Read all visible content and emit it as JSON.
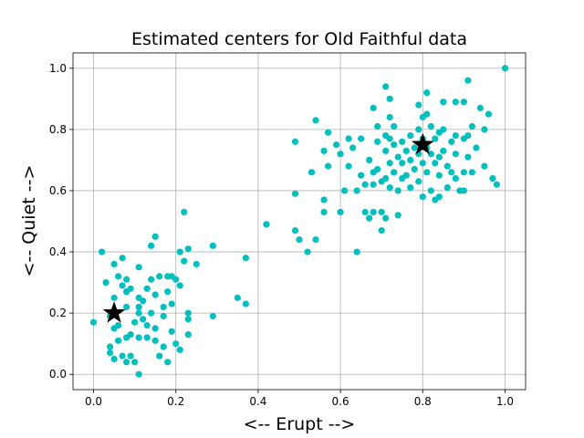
{
  "chart_data": {
    "type": "scatter",
    "title": "Estimated centers for Old Faithful data",
    "xlabel": "<-- Erupt -->",
    "ylabel": "<-- Quiet -->",
    "xlim": [
      -0.05,
      1.05
    ],
    "ylim": [
      -0.05,
      1.05
    ],
    "xticks": [
      "0.0",
      "0.2",
      "0.4",
      "0.6",
      "0.8",
      "1.0"
    ],
    "yticks": [
      "0.0",
      "0.2",
      "0.4",
      "0.6",
      "0.8",
      "1.0"
    ],
    "grid": true,
    "point_color": "#00BFBF",
    "center_color": "#000000",
    "centers": [
      {
        "x": 0.05,
        "y": 0.2
      },
      {
        "x": 0.8,
        "y": 0.75
      }
    ],
    "points": [
      [
        0.0,
        0.17
      ],
      [
        0.02,
        0.4
      ],
      [
        0.03,
        0.3
      ],
      [
        0.04,
        0.19
      ],
      [
        0.04,
        0.09
      ],
      [
        0.04,
        0.07
      ],
      [
        0.05,
        0.36
      ],
      [
        0.05,
        0.25
      ],
      [
        0.05,
        0.15
      ],
      [
        0.05,
        0.05
      ],
      [
        0.06,
        0.32
      ],
      [
        0.06,
        0.16
      ],
      [
        0.06,
        0.11
      ],
      [
        0.07,
        0.38
      ],
      [
        0.07,
        0.29
      ],
      [
        0.07,
        0.06
      ],
      [
        0.08,
        0.31
      ],
      [
        0.08,
        0.27
      ],
      [
        0.08,
        0.22
      ],
      [
        0.08,
        0.12
      ],
      [
        0.08,
        0.04
      ],
      [
        0.09,
        0.28
      ],
      [
        0.09,
        0.13
      ],
      [
        0.09,
        0.06
      ],
      [
        0.1,
        0.17
      ],
      [
        0.1,
        0.04
      ],
      [
        0.11,
        0.35
      ],
      [
        0.11,
        0.25
      ],
      [
        0.11,
        0.22
      ],
      [
        0.11,
        0.2
      ],
      [
        0.11,
        0.12
      ],
      [
        0.11,
        0.0
      ],
      [
        0.12,
        0.24
      ],
      [
        0.12,
        0.18
      ],
      [
        0.13,
        0.28
      ],
      [
        0.13,
        0.16
      ],
      [
        0.13,
        0.12
      ],
      [
        0.14,
        0.42
      ],
      [
        0.14,
        0.31
      ],
      [
        0.14,
        0.2
      ],
      [
        0.15,
        0.45
      ],
      [
        0.15,
        0.26
      ],
      [
        0.15,
        0.15
      ],
      [
        0.15,
        0.11
      ],
      [
        0.16,
        0.32
      ],
      [
        0.16,
        0.06
      ],
      [
        0.17,
        0.22
      ],
      [
        0.17,
        0.19
      ],
      [
        0.17,
        0.09
      ],
      [
        0.18,
        0.32
      ],
      [
        0.18,
        0.27
      ],
      [
        0.18,
        0.04
      ],
      [
        0.19,
        0.32
      ],
      [
        0.19,
        0.23
      ],
      [
        0.19,
        0.14
      ],
      [
        0.2,
        0.31
      ],
      [
        0.2,
        0.1
      ],
      [
        0.21,
        0.4
      ],
      [
        0.21,
        0.29
      ],
      [
        0.21,
        0.08
      ],
      [
        0.22,
        0.53
      ],
      [
        0.22,
        0.37
      ],
      [
        0.23,
        0.41
      ],
      [
        0.23,
        0.2
      ],
      [
        0.23,
        0.18
      ],
      [
        0.23,
        0.13
      ],
      [
        0.25,
        0.36
      ],
      [
        0.29,
        0.42
      ],
      [
        0.29,
        0.19
      ],
      [
        0.35,
        0.25
      ],
      [
        0.37,
        0.38
      ],
      [
        0.37,
        0.23
      ],
      [
        0.42,
        0.49
      ],
      [
        0.49,
        0.76
      ],
      [
        0.49,
        0.59
      ],
      [
        0.49,
        0.47
      ],
      [
        0.5,
        0.44
      ],
      [
        0.52,
        0.4
      ],
      [
        0.53,
        0.66
      ],
      [
        0.54,
        0.83
      ],
      [
        0.54,
        0.44
      ],
      [
        0.56,
        0.73
      ],
      [
        0.56,
        0.57
      ],
      [
        0.56,
        0.53
      ],
      [
        0.57,
        0.79
      ],
      [
        0.57,
        0.68
      ],
      [
        0.59,
        0.75
      ],
      [
        0.6,
        0.53
      ],
      [
        0.6,
        0.72
      ],
      [
        0.61,
        0.6
      ],
      [
        0.62,
        0.77
      ],
      [
        0.62,
        0.68
      ],
      [
        0.63,
        0.74
      ],
      [
        0.64,
        0.6
      ],
      [
        0.64,
        0.4
      ],
      [
        0.65,
        0.65
      ],
      [
        0.65,
        0.77
      ],
      [
        0.66,
        0.62
      ],
      [
        0.66,
        0.53
      ],
      [
        0.67,
        0.51
      ],
      [
        0.67,
        0.7
      ],
      [
        0.68,
        0.87
      ],
      [
        0.68,
        0.66
      ],
      [
        0.68,
        0.62
      ],
      [
        0.68,
        0.53
      ],
      [
        0.69,
        0.81
      ],
      [
        0.69,
        0.76
      ],
      [
        0.69,
        0.67
      ],
      [
        0.7,
        0.63
      ],
      [
        0.7,
        0.53
      ],
      [
        0.7,
        0.47
      ],
      [
        0.71,
        0.94
      ],
      [
        0.71,
        0.78
      ],
      [
        0.71,
        0.73
      ],
      [
        0.71,
        0.64
      ],
      [
        0.71,
        0.51
      ],
      [
        0.72,
        0.9
      ],
      [
        0.72,
        0.84
      ],
      [
        0.72,
        0.77
      ],
      [
        0.72,
        0.69
      ],
      [
        0.72,
        0.61
      ],
      [
        0.73,
        0.81
      ],
      [
        0.73,
        0.75
      ],
      [
        0.73,
        0.66
      ],
      [
        0.74,
        0.71
      ],
      [
        0.74,
        0.6
      ],
      [
        0.74,
        0.52
      ],
      [
        0.75,
        0.76
      ],
      [
        0.75,
        0.69
      ],
      [
        0.75,
        0.64
      ],
      [
        0.76,
        0.73
      ],
      [
        0.76,
        0.65
      ],
      [
        0.77,
        0.78
      ],
      [
        0.77,
        0.7
      ],
      [
        0.77,
        0.61
      ],
      [
        0.78,
        0.74
      ],
      [
        0.78,
        0.67
      ],
      [
        0.79,
        0.88
      ],
      [
        0.79,
        0.8
      ],
      [
        0.79,
        0.72
      ],
      [
        0.79,
        0.63
      ],
      [
        0.8,
        0.84
      ],
      [
        0.8,
        0.77
      ],
      [
        0.8,
        0.69
      ],
      [
        0.8,
        0.58
      ],
      [
        0.81,
        0.92
      ],
      [
        0.81,
        0.85
      ],
      [
        0.81,
        0.74
      ],
      [
        0.81,
        0.66
      ],
      [
        0.82,
        0.81
      ],
      [
        0.82,
        0.72
      ],
      [
        0.82,
        0.6
      ],
      [
        0.83,
        0.77
      ],
      [
        0.83,
        0.69
      ],
      [
        0.83,
        0.57
      ],
      [
        0.84,
        0.79
      ],
      [
        0.84,
        0.71
      ],
      [
        0.84,
        0.65
      ],
      [
        0.84,
        0.58
      ],
      [
        0.85,
        0.89
      ],
      [
        0.85,
        0.8
      ],
      [
        0.85,
        0.73
      ],
      [
        0.86,
        0.68
      ],
      [
        0.86,
        0.61
      ],
      [
        0.87,
        0.76
      ],
      [
        0.87,
        0.66
      ],
      [
        0.88,
        0.89
      ],
      [
        0.88,
        0.78
      ],
      [
        0.88,
        0.72
      ],
      [
        0.88,
        0.64
      ],
      [
        0.89,
        0.6
      ],
      [
        0.9,
        0.89
      ],
      [
        0.9,
        0.77
      ],
      [
        0.9,
        0.66
      ],
      [
        0.9,
        0.6
      ],
      [
        0.91,
        0.96
      ],
      [
        0.91,
        0.78
      ],
      [
        0.91,
        0.71
      ],
      [
        0.92,
        0.81
      ],
      [
        0.92,
        0.66
      ],
      [
        0.93,
        0.74
      ],
      [
        0.94,
        0.87
      ],
      [
        0.95,
        0.8
      ],
      [
        0.95,
        0.68
      ],
      [
        0.96,
        0.85
      ],
      [
        0.97,
        0.64
      ],
      [
        0.98,
        0.62
      ],
      [
        1.0,
        1.0
      ]
    ]
  }
}
